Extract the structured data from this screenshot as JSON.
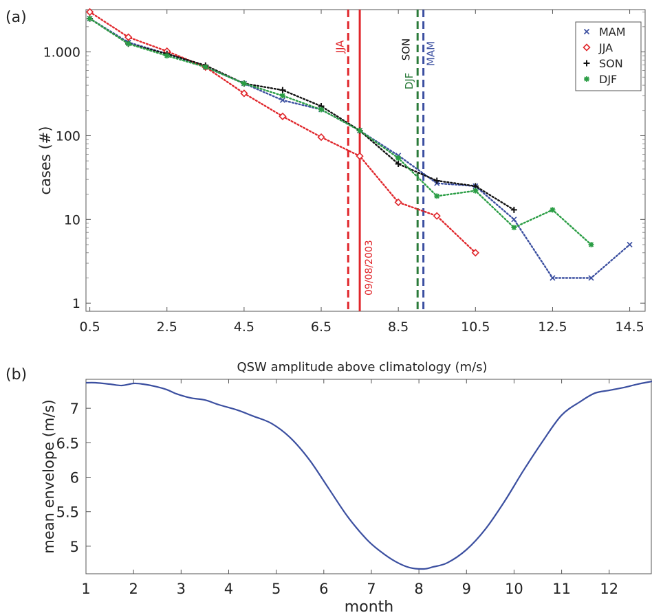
{
  "chart_data": [
    {
      "panel_label": "(a)",
      "type": "line",
      "title": "",
      "xlabel": "",
      "ylabel": "cases (#)",
      "yscale": "log",
      "xlim": [
        0.4,
        14.9
      ],
      "ylim": [
        0.8,
        3200
      ],
      "xticks": [
        0.5,
        2.5,
        4.5,
        6.5,
        8.5,
        10.5,
        12.5,
        14.5
      ],
      "xtick_labels": [
        "0.5",
        "2.5",
        "4.5",
        "6.5",
        "8.5",
        "10.5",
        "12.5",
        "14.5"
      ],
      "yticks": [
        1,
        10,
        100,
        1000
      ],
      "ytick_labels": [
        "1",
        "10",
        "100",
        "1.000"
      ],
      "legend_position": "top-right",
      "series": [
        {
          "name": "MAM",
          "color": "#3b4fa0",
          "marker": "x",
          "x": [
            0.5,
            1.5,
            2.5,
            3.5,
            4.5,
            5.5,
            6.5,
            7.5,
            8.5,
            9.5,
            10.5,
            11.5,
            12.5,
            13.5,
            14.5
          ],
          "y": [
            2500,
            1300,
            950,
            660,
            420,
            265,
            205,
            115,
            58,
            27,
            25,
            10,
            2,
            2,
            5
          ]
        },
        {
          "name": "JJA",
          "color": "#e0262b",
          "marker": "diamond",
          "x": [
            0.5,
            1.5,
            2.5,
            3.5,
            4.5,
            5.5,
            6.5,
            7.5,
            8.5,
            9.5,
            10.5
          ],
          "y": [
            3000,
            1500,
            1020,
            660,
            320,
            170,
            96,
            57,
            16,
            11,
            4
          ]
        },
        {
          "name": "SON",
          "color": "#111111",
          "marker": "plus",
          "x": [
            0.5,
            1.5,
            2.5,
            3.5,
            4.5,
            5.5,
            6.5,
            7.5,
            8.5,
            9.5,
            10.5,
            11.5
          ],
          "y": [
            2500,
            1250,
            950,
            690,
            420,
            350,
            225,
            115,
            46,
            29,
            25,
            13
          ]
        },
        {
          "name": "DJF",
          "color": "#2a9d44",
          "marker": "asterisk",
          "x": [
            0.5,
            1.5,
            2.5,
            3.5,
            4.5,
            5.5,
            6.5,
            7.5,
            8.5,
            9.5,
            10.5,
            11.5,
            12.5,
            13.5
          ],
          "y": [
            2500,
            1250,
            900,
            660,
            420,
            300,
            205,
            115,
            54,
            19,
            22,
            8,
            13,
            5
          ]
        }
      ],
      "vlines": [
        {
          "x": 7.2,
          "label": "JJA",
          "color": "#e0262b",
          "style": "dashed"
        },
        {
          "x": 7.5,
          "label": "09/08/2003",
          "color": "#e0262b",
          "style": "solid"
        },
        {
          "x": 9.0,
          "label": "DJF",
          "color": "#2a7a3a",
          "style": "dashed"
        },
        {
          "x": 9.15,
          "label": "SON",
          "color": "#111111",
          "style": "none"
        },
        {
          "x": 9.15,
          "label": "MAM",
          "color": "#3b4fa0",
          "style": "dashed"
        }
      ]
    },
    {
      "panel_label": "(b)",
      "type": "line",
      "title": "QSW amplitude above climatology (m/s)",
      "xlabel": "month",
      "ylabel": "mean envelope (m/s)",
      "xlim": [
        1,
        12.9
      ],
      "ylim": [
        4.6,
        7.42
      ],
      "xticks": [
        1,
        2,
        3,
        4,
        5,
        6,
        7,
        8,
        9,
        10,
        11,
        12
      ],
      "xtick_labels": [
        "1",
        "2",
        "3",
        "4",
        "5",
        "6",
        "7",
        "8",
        "9",
        "10",
        "11",
        "12"
      ],
      "yticks": [
        5,
        5.5,
        6,
        6.5,
        7
      ],
      "ytick_labels": [
        "5",
        "5.5",
        "6",
        "6.5",
        "7"
      ],
      "series": [
        {
          "color": "#3b4fa0",
          "x": [
            1.0,
            1.2,
            1.5,
            1.75,
            2.0,
            2.2,
            2.5,
            2.7,
            2.9,
            3.2,
            3.5,
            3.8,
            4.2,
            4.5,
            4.9,
            5.3,
            5.7,
            6.1,
            6.5,
            6.9,
            7.2,
            7.5,
            7.8,
            8.1,
            8.3,
            8.6,
            9.0,
            9.4,
            9.8,
            10.2,
            10.6,
            11.0,
            11.4,
            11.7,
            12.0,
            12.3,
            12.6,
            12.9
          ],
          "y": [
            7.37,
            7.37,
            7.35,
            7.33,
            7.36,
            7.35,
            7.31,
            7.27,
            7.21,
            7.15,
            7.12,
            7.05,
            6.97,
            6.89,
            6.78,
            6.57,
            6.25,
            5.84,
            5.43,
            5.1,
            4.92,
            4.78,
            4.69,
            4.67,
            4.7,
            4.76,
            4.95,
            5.25,
            5.65,
            6.1,
            6.52,
            6.9,
            7.1,
            7.22,
            7.26,
            7.3,
            7.35,
            7.39
          ]
        }
      ]
    }
  ]
}
